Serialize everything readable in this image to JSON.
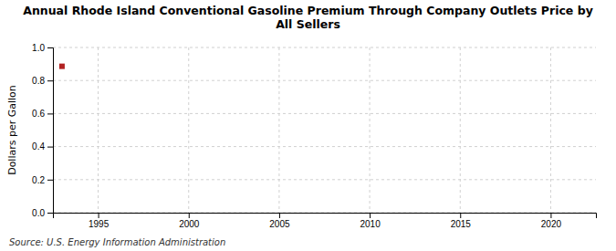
{
  "chart_data": {
    "type": "scatter",
    "title": "Annual Rhode Island Conventional Gasoline Premium Through Company Outlets Price by All Sellers",
    "ylabel": "Dollars per Gallon",
    "source": "Source: U.S. Energy Information Administration",
    "x": [
      1993
    ],
    "values": [
      0.886
    ],
    "color": "#b22222",
    "marker": "square",
    "xlim": [
      1992.5,
      2022.5
    ],
    "ylim": [
      0.0,
      1.0
    ],
    "xticks": [
      1995,
      2000,
      2005,
      2010,
      2015,
      2020
    ],
    "yticks": [
      {
        "value": 0.0,
        "label": "0.0"
      },
      0.2,
      0.4,
      0.6,
      0.8,
      {
        "value": 1.0,
        "label": "1.0"
      }
    ],
    "grid": true
  }
}
